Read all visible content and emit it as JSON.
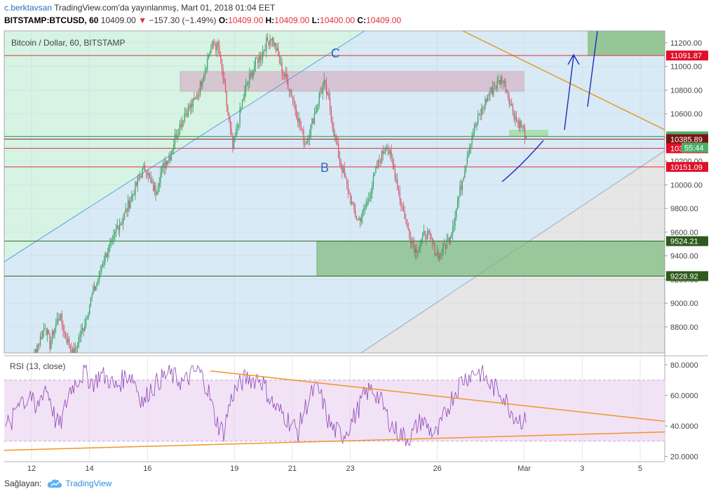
{
  "header": {
    "author": "c.berktavsan",
    "published": "TradingView.com'da yayınlanmış, Mart 01, 2018 01:04 EET",
    "symbol": "BITSTAMP:BTCUSD, 60",
    "price": "10409.00",
    "change": "−157.30 (−1.49%)",
    "o_label": "O:",
    "o_value": "10409.00",
    "h_label": "H:",
    "h_value": "10409.00",
    "l_label": "L:",
    "l_value": "10400.00",
    "c_label": "C:",
    "c_value": "10409.00"
  },
  "footer": {
    "label": "Sağlayan:",
    "brand": "TradingView"
  },
  "chart_data": [
    {
      "type": "candlestick",
      "title": "Bitcoin / Dollar, 60, BITSTAMP",
      "ylim": [
        8580,
        11300
      ],
      "yticks": [
        8800,
        9000,
        9200,
        9400,
        9600,
        9800,
        10000,
        10200,
        10400,
        10600,
        10800,
        11000,
        11200
      ],
      "ytick_labels": [
        "8800.00",
        "9000.00",
        "9200.00",
        "9400.00",
        "9600.00",
        "9800.00",
        "10000.00",
        "10200.00",
        "10400.00",
        "10600.00",
        "10800.00",
        "11000.00",
        "11200.00"
      ],
      "xticks": [
        12,
        14,
        16,
        19,
        21,
        23,
        26,
        1,
        3,
        5
      ],
      "xtick_labels": [
        "12",
        "14",
        "16",
        "19",
        "21",
        "23",
        "26",
        "Mar",
        "3",
        "5"
      ],
      "price_lines": [
        {
          "value": 11091.87,
          "label": "11091.87",
          "color": "#e0303a"
        },
        {
          "value": 10409.0,
          "label": "10409.00",
          "color": "#2e9b4a"
        },
        {
          "value": 10385.89,
          "label": "10385.89",
          "color": "#8b1a1a"
        },
        {
          "value": 10308.46,
          "label": "10308.46",
          "color": "#e0303a"
        },
        {
          "value": 10151.09,
          "label": "10151.09",
          "color": "#e0303a"
        },
        {
          "value": 9524.21,
          "label": "9524.21",
          "color": "#2e6b25"
        },
        {
          "value": 9228.92,
          "label": "9228.92",
          "color": "#2e6b25"
        }
      ],
      "countdown": "55:44",
      "annotations": [
        {
          "text": "C",
          "x": "Feb 21.7",
          "y": 11130
        },
        {
          "text": "B",
          "x": "Feb 21.9",
          "y": 10150
        }
      ],
      "series": [
        {
          "name": "BTCUSD",
          "x_start": "Feb 11 10:00",
          "x_end": "Mar 01 01:00",
          "close": [
            8180,
            8300,
            8420,
            8600,
            8700,
            8820,
            8650,
            8800,
            8900,
            8750,
            8650,
            8550,
            8700,
            8800,
            8950,
            9100,
            9200,
            9350,
            9450,
            9500,
            9650,
            9700,
            9800,
            9900,
            10000,
            10100,
            10150,
            10000,
            9950,
            10100,
            10200,
            10250,
            10400,
            10500,
            10600,
            10650,
            10700,
            10800,
            10950,
            11100,
            11200,
            11150,
            10900,
            10600,
            10300,
            10500,
            10700,
            10850,
            10950,
            11050,
            11100,
            11200,
            11250,
            11150,
            11000,
            10900,
            10800,
            10650,
            10500,
            10350,
            10450,
            10600,
            10750,
            10850,
            10700,
            10450,
            10250,
            10100,
            9950,
            9800,
            9700,
            9750,
            9850,
            10000,
            10150,
            10250,
            10350,
            10200,
            10050,
            9850,
            9700,
            9550,
            9450,
            9500,
            9600,
            9550,
            9450,
            9400,
            9480,
            9550,
            9700,
            9900,
            10100,
            10300,
            10450,
            10550,
            10650,
            10750,
            10800,
            10850,
            10900,
            10800,
            10650,
            10550,
            10500,
            10409
          ],
          "volatility": 60
        }
      ],
      "rsi": {
        "title": "RSI (13, close)",
        "ylim": [
          17,
          85
        ],
        "yticks": [
          20,
          40,
          60,
          80
        ],
        "ytick_labels": [
          "20.0000",
          "40.0000",
          "60.0000",
          "80.0000"
        ],
        "band": [
          30,
          70
        ],
        "values": [
          45,
          38,
          52,
          60,
          55,
          62,
          48,
          58,
          66,
          58,
          44,
          40,
          52,
          64,
          68,
          72,
          75,
          70,
          68,
          74,
          72,
          70,
          65,
          68,
          72,
          74,
          70,
          60,
          55,
          64,
          66,
          70,
          72,
          74,
          72,
          70,
          68,
          72,
          75,
          76,
          70,
          62,
          48,
          40,
          36,
          52,
          62,
          66,
          70,
          72,
          70,
          72,
          68,
          60,
          54,
          50,
          48,
          44,
          40,
          36,
          48,
          56,
          62,
          64,
          56,
          44,
          38,
          36,
          34,
          38,
          44,
          50,
          58,
          62,
          64,
          60,
          54,
          46,
          40,
          36,
          34,
          32,
          34,
          40,
          44,
          40,
          36,
          34,
          42,
          50,
          58,
          64,
          70,
          72,
          74,
          76,
          74,
          70,
          66,
          64,
          62,
          56,
          50,
          46,
          44,
          42
        ]
      }
    }
  ]
}
